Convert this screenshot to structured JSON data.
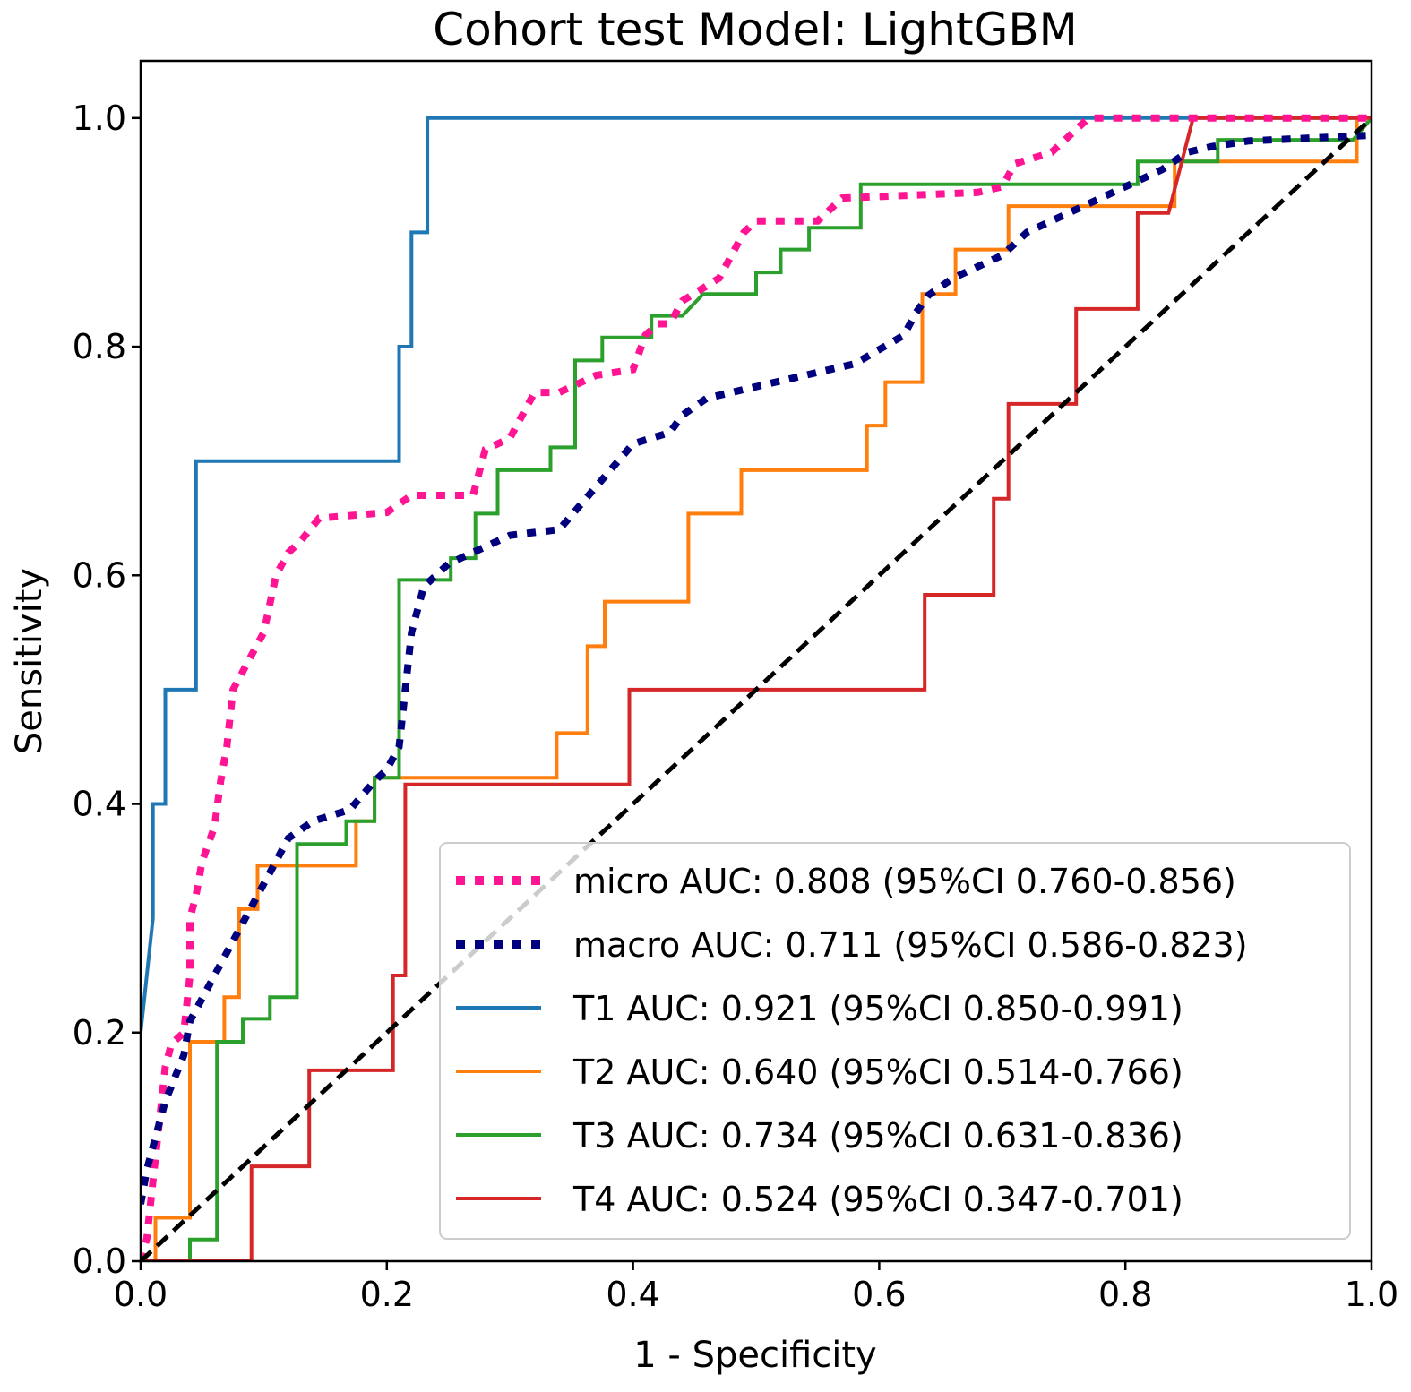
{
  "chart_data": {
    "type": "line",
    "title": "Cohort test Model: LightGBM",
    "xlabel": "1 - Specificity",
    "ylabel": "Sensitivity",
    "xlim": [
      0,
      1
    ],
    "ylim": [
      0,
      1.05
    ],
    "xticks": [
      0.0,
      0.2,
      0.4,
      0.6,
      0.8,
      1.0
    ],
    "yticks": [
      0.0,
      0.2,
      0.4,
      0.6,
      0.8,
      1.0
    ],
    "xtick_labels": [
      "0.0",
      "0.2",
      "0.4",
      "0.6",
      "0.8",
      "1.0"
    ],
    "ytick_labels": [
      "0.0",
      "0.2",
      "0.4",
      "0.6",
      "0.8",
      "1.0"
    ],
    "grid": false,
    "legend_position": "lower-right",
    "reference_line": {
      "points": [
        [
          0,
          0
        ],
        [
          1,
          1
        ]
      ],
      "color": "#000000",
      "style": "dashed"
    },
    "series": [
      {
        "name": "micro",
        "label": "micro AUC: 0.808 (95%CI 0.760-0.856)",
        "color": "#ff1493",
        "style": "dotted",
        "points": [
          [
            0,
            0
          ],
          [
            0.005,
            0.02
          ],
          [
            0.01,
            0.07
          ],
          [
            0.015,
            0.12
          ],
          [
            0.02,
            0.17
          ],
          [
            0.025,
            0.19
          ],
          [
            0.035,
            0.2
          ],
          [
            0.04,
            0.25
          ],
          [
            0.04,
            0.3
          ],
          [
            0.045,
            0.32
          ],
          [
            0.05,
            0.35
          ],
          [
            0.06,
            0.38
          ],
          [
            0.065,
            0.42
          ],
          [
            0.07,
            0.45
          ],
          [
            0.075,
            0.5
          ],
          [
            0.085,
            0.52
          ],
          [
            0.1,
            0.55
          ],
          [
            0.11,
            0.6
          ],
          [
            0.12,
            0.62
          ],
          [
            0.13,
            0.63
          ],
          [
            0.145,
            0.65
          ],
          [
            0.2,
            0.655
          ],
          [
            0.22,
            0.67
          ],
          [
            0.27,
            0.67
          ],
          [
            0.28,
            0.71
          ],
          [
            0.3,
            0.72
          ],
          [
            0.31,
            0.74
          ],
          [
            0.32,
            0.76
          ],
          [
            0.34,
            0.76
          ],
          [
            0.37,
            0.775
          ],
          [
            0.4,
            0.78
          ],
          [
            0.41,
            0.81
          ],
          [
            0.42,
            0.82
          ],
          [
            0.43,
            0.82
          ],
          [
            0.44,
            0.84
          ],
          [
            0.47,
            0.86
          ],
          [
            0.48,
            0.88
          ],
          [
            0.49,
            0.9
          ],
          [
            0.5,
            0.91
          ],
          [
            0.55,
            0.91
          ],
          [
            0.57,
            0.93
          ],
          [
            0.68,
            0.935
          ],
          [
            0.7,
            0.94
          ],
          [
            0.71,
            0.96
          ],
          [
            0.74,
            0.97
          ],
          [
            0.76,
            0.99
          ],
          [
            0.77,
            1.0
          ],
          [
            1.0,
            1.0
          ]
        ]
      },
      {
        "name": "macro",
        "label": "macro AUC: 0.711 (95%CI 0.586-0.823)",
        "color": "#00007f",
        "style": "dotted",
        "points": [
          [
            0,
            0.05
          ],
          [
            0.005,
            0.08
          ],
          [
            0.01,
            0.1
          ],
          [
            0.02,
            0.14
          ],
          [
            0.035,
            0.18
          ],
          [
            0.04,
            0.21
          ],
          [
            0.05,
            0.23
          ],
          [
            0.06,
            0.25
          ],
          [
            0.08,
            0.29
          ],
          [
            0.1,
            0.33
          ],
          [
            0.12,
            0.37
          ],
          [
            0.14,
            0.385
          ],
          [
            0.17,
            0.395
          ],
          [
            0.19,
            0.42
          ],
          [
            0.2,
            0.43
          ],
          [
            0.21,
            0.45
          ],
          [
            0.215,
            0.5
          ],
          [
            0.22,
            0.55
          ],
          [
            0.23,
            0.59
          ],
          [
            0.25,
            0.61
          ],
          [
            0.28,
            0.625
          ],
          [
            0.3,
            0.635
          ],
          [
            0.34,
            0.64
          ],
          [
            0.36,
            0.665
          ],
          [
            0.38,
            0.69
          ],
          [
            0.4,
            0.715
          ],
          [
            0.43,
            0.725
          ],
          [
            0.44,
            0.74
          ],
          [
            0.46,
            0.755
          ],
          [
            0.52,
            0.77
          ],
          [
            0.58,
            0.785
          ],
          [
            0.62,
            0.81
          ],
          [
            0.63,
            0.83
          ],
          [
            0.64,
            0.845
          ],
          [
            0.66,
            0.86
          ],
          [
            0.7,
            0.88
          ],
          [
            0.72,
            0.9
          ],
          [
            0.76,
            0.92
          ],
          [
            0.8,
            0.94
          ],
          [
            0.83,
            0.955
          ],
          [
            0.85,
            0.97
          ],
          [
            0.87,
            0.975
          ],
          [
            0.9,
            0.98
          ],
          [
            1.0,
            0.985
          ]
        ]
      },
      {
        "name": "T1",
        "label": "T1 AUC: 0.921 (95%CI 0.850-0.991)",
        "color": "#1f77b4",
        "style": "solid",
        "points": [
          [
            0,
            0.2
          ],
          [
            0.01,
            0.3
          ],
          [
            0.01,
            0.4
          ],
          [
            0.02,
            0.4
          ],
          [
            0.02,
            0.5
          ],
          [
            0.045,
            0.5
          ],
          [
            0.045,
            0.7
          ],
          [
            0.21,
            0.7
          ],
          [
            0.21,
            0.8
          ],
          [
            0.22,
            0.8
          ],
          [
            0.22,
            0.9
          ],
          [
            0.233,
            0.9
          ],
          [
            0.233,
            1.0
          ],
          [
            1.0,
            1.0
          ]
        ]
      },
      {
        "name": "T2",
        "label": "T2 AUC: 0.640 (95%CI 0.514-0.766)",
        "color": "#ff7f0e",
        "style": "solid",
        "points": [
          [
            0,
            0
          ],
          [
            0.012,
            0
          ],
          [
            0.012,
            0.038
          ],
          [
            0.04,
            0.038
          ],
          [
            0.04,
            0.192
          ],
          [
            0.068,
            0.192
          ],
          [
            0.068,
            0.231
          ],
          [
            0.08,
            0.231
          ],
          [
            0.08,
            0.308
          ],
          [
            0.095,
            0.308
          ],
          [
            0.095,
            0.346
          ],
          [
            0.175,
            0.346
          ],
          [
            0.175,
            0.385
          ],
          [
            0.19,
            0.385
          ],
          [
            0.19,
            0.423
          ],
          [
            0.338,
            0.423
          ],
          [
            0.338,
            0.462
          ],
          [
            0.363,
            0.462
          ],
          [
            0.363,
            0.538
          ],
          [
            0.377,
            0.538
          ],
          [
            0.377,
            0.577
          ],
          [
            0.445,
            0.577
          ],
          [
            0.445,
            0.654
          ],
          [
            0.488,
            0.654
          ],
          [
            0.488,
            0.692
          ],
          [
            0.59,
            0.692
          ],
          [
            0.59,
            0.731
          ],
          [
            0.605,
            0.731
          ],
          [
            0.605,
            0.769
          ],
          [
            0.635,
            0.769
          ],
          [
            0.635,
            0.846
          ],
          [
            0.662,
            0.846
          ],
          [
            0.662,
            0.885
          ],
          [
            0.705,
            0.885
          ],
          [
            0.705,
            0.923
          ],
          [
            0.84,
            0.923
          ],
          [
            0.84,
            0.962
          ],
          [
            0.988,
            0.962
          ],
          [
            0.988,
            1.0
          ],
          [
            1.0,
            1.0
          ]
        ]
      },
      {
        "name": "T3",
        "label": "T3 AUC: 0.734 (95%CI 0.631-0.836)",
        "color": "#2ca02c",
        "style": "solid",
        "points": [
          [
            0.04,
            0
          ],
          [
            0.04,
            0.019
          ],
          [
            0.062,
            0.019
          ],
          [
            0.062,
            0.192
          ],
          [
            0.083,
            0.192
          ],
          [
            0.083,
            0.212
          ],
          [
            0.105,
            0.212
          ],
          [
            0.105,
            0.231
          ],
          [
            0.127,
            0.231
          ],
          [
            0.127,
            0.365
          ],
          [
            0.167,
            0.365
          ],
          [
            0.167,
            0.385
          ],
          [
            0.19,
            0.385
          ],
          [
            0.19,
            0.423
          ],
          [
            0.21,
            0.423
          ],
          [
            0.21,
            0.596
          ],
          [
            0.252,
            0.596
          ],
          [
            0.252,
            0.615
          ],
          [
            0.272,
            0.615
          ],
          [
            0.272,
            0.654
          ],
          [
            0.29,
            0.654
          ],
          [
            0.29,
            0.692
          ],
          [
            0.333,
            0.692
          ],
          [
            0.333,
            0.712
          ],
          [
            0.353,
            0.712
          ],
          [
            0.353,
            0.788
          ],
          [
            0.375,
            0.788
          ],
          [
            0.375,
            0.808
          ],
          [
            0.415,
            0.808
          ],
          [
            0.415,
            0.827
          ],
          [
            0.44,
            0.827
          ],
          [
            0.457,
            0.846
          ],
          [
            0.5,
            0.846
          ],
          [
            0.5,
            0.865
          ],
          [
            0.52,
            0.865
          ],
          [
            0.52,
            0.885
          ],
          [
            0.543,
            0.885
          ],
          [
            0.543,
            0.904
          ],
          [
            0.585,
            0.904
          ],
          [
            0.585,
            0.942
          ],
          [
            0.81,
            0.942
          ],
          [
            0.81,
            0.962
          ],
          [
            0.875,
            0.962
          ],
          [
            0.875,
            0.981
          ],
          [
            0.985,
            0.981
          ],
          [
            1.0,
            1.0
          ]
        ]
      },
      {
        "name": "T4",
        "label": "T4 AUC: 0.524 (95%CI 0.347-0.701)",
        "color": "#d62728",
        "style": "solid",
        "points": [
          [
            0,
            0
          ],
          [
            0.09,
            0
          ],
          [
            0.09,
            0.083
          ],
          [
            0.137,
            0.083
          ],
          [
            0.137,
            0.167
          ],
          [
            0.205,
            0.167
          ],
          [
            0.205,
            0.25
          ],
          [
            0.215,
            0.25
          ],
          [
            0.215,
            0.417
          ],
          [
            0.397,
            0.417
          ],
          [
            0.397,
            0.5
          ],
          [
            0.637,
            0.5
          ],
          [
            0.637,
            0.583
          ],
          [
            0.693,
            0.583
          ],
          [
            0.693,
            0.667
          ],
          [
            0.705,
            0.667
          ],
          [
            0.705,
            0.75
          ],
          [
            0.76,
            0.75
          ],
          [
            0.76,
            0.833
          ],
          [
            0.81,
            0.833
          ],
          [
            0.81,
            0.917
          ],
          [
            0.835,
            0.917
          ],
          [
            0.855,
            1.0
          ],
          [
            1.0,
            1.0
          ]
        ]
      }
    ]
  }
}
